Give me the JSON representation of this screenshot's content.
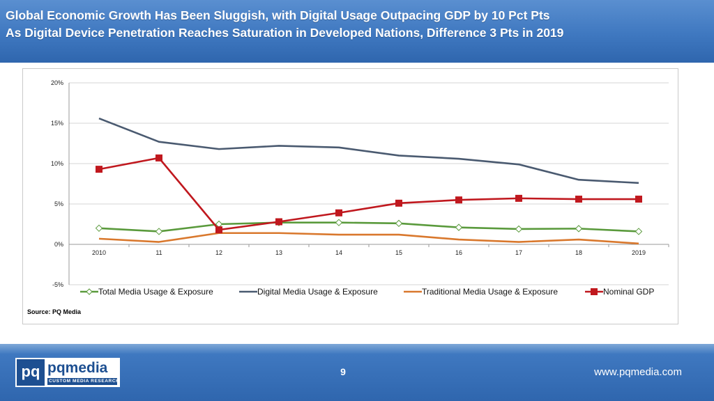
{
  "header": {
    "title_line1": "Global Economic Growth Has Been Sluggish, with Digital Usage Outpacing GDP by 10 Pct Pts",
    "title_line2": "As Digital Device Penetration Reaches Saturation in Developed Nations, Difference 3 Pts in 2019"
  },
  "chart_data": {
    "type": "line",
    "categories": [
      "2010",
      "11",
      "12",
      "13",
      "14",
      "15",
      "16",
      "17",
      "18",
      "2019"
    ],
    "y_ticks": [
      "20%",
      "15%",
      "10%",
      "5%",
      "0%",
      "-5%"
    ],
    "ylim": [
      -5,
      20
    ],
    "grid": true,
    "legend_position": "bottom",
    "series": [
      {
        "name": "Total Media Usage & Exposure",
        "color": "#5a9a3c",
        "marker": "diamond-open",
        "values": [
          2.0,
          1.6,
          2.5,
          2.7,
          2.7,
          2.6,
          2.1,
          1.9,
          1.95,
          1.6
        ]
      },
      {
        "name": "Digital Media Usage & Exposure",
        "color": "#4a5a70",
        "marker": "none",
        "values": [
          15.6,
          12.7,
          11.8,
          12.2,
          12.0,
          11.0,
          10.6,
          9.9,
          8.0,
          7.6
        ]
      },
      {
        "name": "Traditional Media Usage & Exposure",
        "color": "#d9782d",
        "marker": "none",
        "values": [
          0.7,
          0.3,
          1.4,
          1.4,
          1.2,
          1.2,
          0.6,
          0.3,
          0.6,
          0.1
        ]
      },
      {
        "name": "Nominal GDP",
        "color": "#c0181e",
        "marker": "square",
        "values": [
          9.3,
          10.7,
          1.8,
          2.8,
          3.9,
          5.1,
          5.5,
          5.7,
          5.6,
          5.6
        ]
      }
    ]
  },
  "source_label": "Source: PQ Media",
  "footer": {
    "logo_mark": "pq",
    "logo_word": "pqmedia",
    "logo_tagline": "CUSTOM MEDIA RESEARCH",
    "page_number": "9",
    "website": "www.pqmedia.com"
  }
}
